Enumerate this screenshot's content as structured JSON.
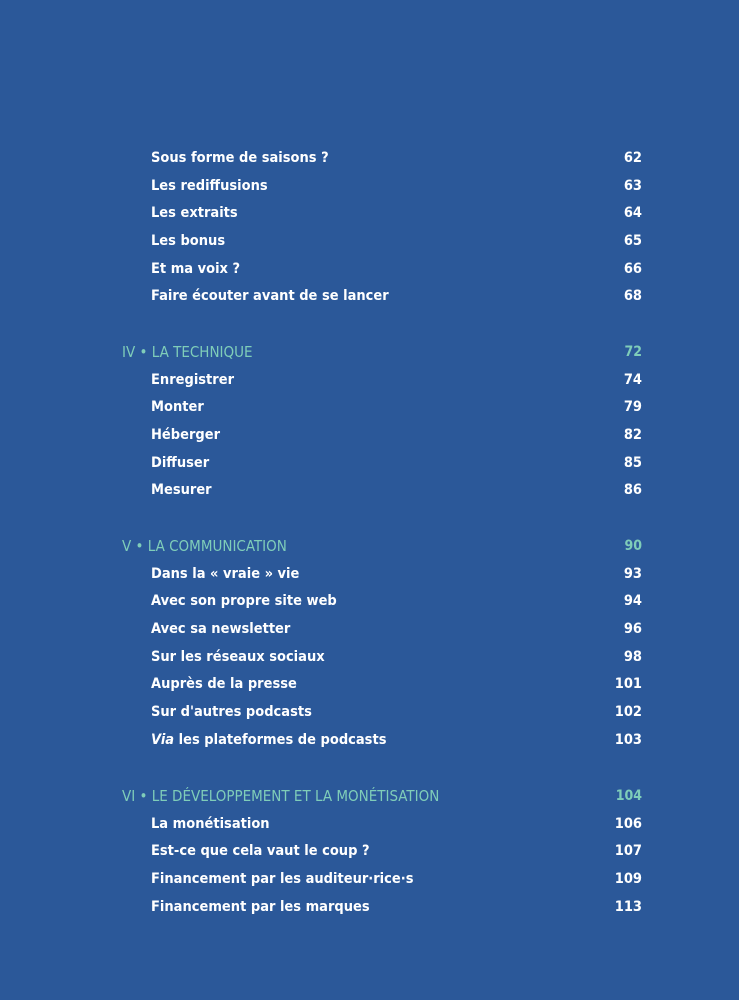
{
  "colors": {
    "background": "#2b5899",
    "heading": "#7fcdb9",
    "text": "#ffffff"
  },
  "sections": [
    {
      "heading": null,
      "items": [
        {
          "title": "Sous forme de saisons ?",
          "page": "62"
        },
        {
          "title": "Les rediffusions",
          "page": "63"
        },
        {
          "title": "Les extraits",
          "page": "64"
        },
        {
          "title": "Les bonus",
          "page": "65"
        },
        {
          "title": "Et ma voix ?",
          "page": "66"
        },
        {
          "title": "Faire écouter avant de se lancer",
          "page": "68"
        }
      ]
    },
    {
      "heading": {
        "title": "IV • LA TECHNIQUE",
        "page": "72"
      },
      "items": [
        {
          "title": "Enregistrer",
          "page": "74"
        },
        {
          "title": "Monter",
          "page": "79"
        },
        {
          "title": "Héberger",
          "page": "82"
        },
        {
          "title": "Diffuser",
          "page": "85"
        },
        {
          "title": "Mesurer",
          "page": "86"
        }
      ]
    },
    {
      "heading": {
        "title": "V • LA COMMUNICATION",
        "page": "90"
      },
      "items": [
        {
          "title": "Dans la « vraie » vie",
          "page": "93"
        },
        {
          "title": "Avec son propre site web",
          "page": "94"
        },
        {
          "title": "Avec sa newsletter",
          "page": "96"
        },
        {
          "title": "Sur les réseaux sociaux",
          "page": "98"
        },
        {
          "title": "Auprès de la presse",
          "page": "101"
        },
        {
          "title": "Sur d'autres podcasts",
          "page": "102"
        },
        {
          "title_italic": "Via",
          "title": " les plateformes de podcasts",
          "page": "103"
        }
      ]
    },
    {
      "heading": {
        "title": "VI • LE DÉVELOPPEMENT ET LA MONÉTISATION",
        "page": "104"
      },
      "items": [
        {
          "title": "La monétisation",
          "page": "106"
        },
        {
          "title": "Est-ce que cela vaut le coup ?",
          "page": "107"
        },
        {
          "title": "Financement par les auditeur·rice·s",
          "page": "109"
        },
        {
          "title": "Financement par les marques",
          "page": "113"
        }
      ]
    }
  ]
}
